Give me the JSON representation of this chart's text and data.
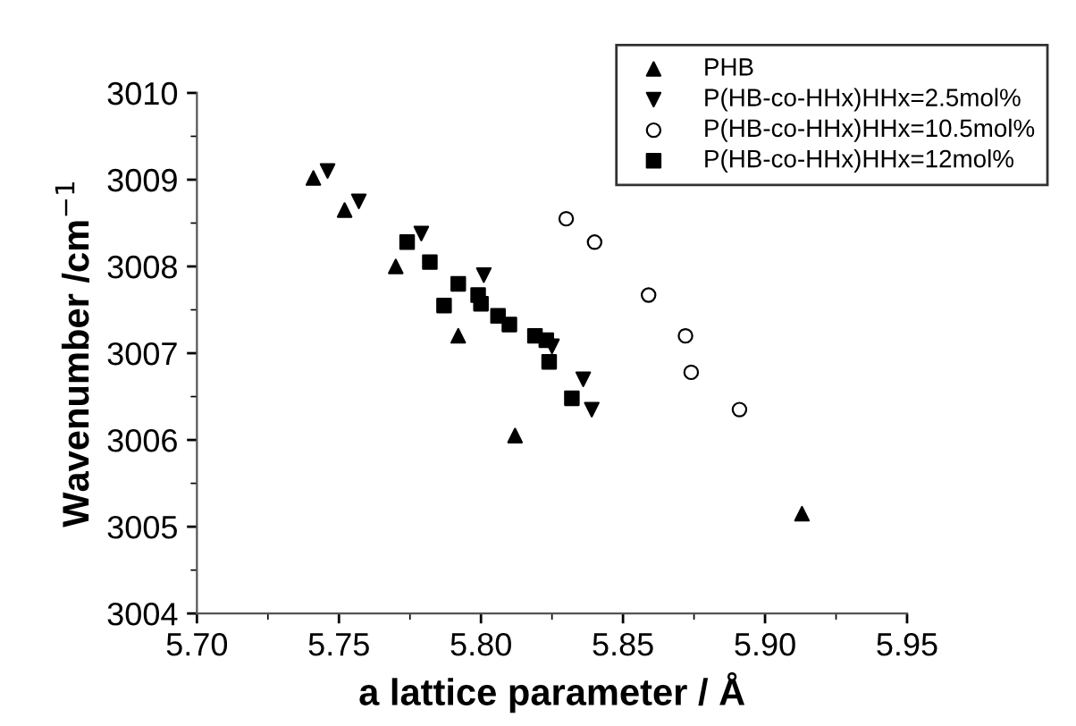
{
  "chart_data": {
    "type": "scatter",
    "xlabel": "a lattice parameter / Å",
    "ylabel": "Wavenumber /cm$^{−1}$",
    "xlim": [
      5.7,
      5.95
    ],
    "xticks": [
      {
        "value": 5.7,
        "label": "5.70"
      },
      {
        "value": 5.75,
        "label": "5.75"
      },
      {
        "value": 5.8,
        "label": "5.80"
      },
      {
        "value": 5.85,
        "label": "5.85"
      },
      {
        "value": 5.9,
        "label": "5.90"
      },
      {
        "value": 5.95,
        "label": "5.95"
      }
    ],
    "ylim": [
      3004,
      3010
    ],
    "yticks": [
      3004,
      3005,
      3006,
      3007,
      3008,
      3009,
      3010
    ],
    "grid": false,
    "legend": "top right",
    "series": [
      {
        "name": "PHB",
        "color": "#000000",
        "marker": "triangle",
        "x": [
          5.741,
          5.752,
          5.77,
          5.792,
          5.812,
          5.913
        ],
        "values": [
          3009.02,
          3008.65,
          3008.0,
          3007.2,
          3006.05,
          3005.15
        ]
      },
      {
        "name": "P(HB-co-HHx)HHx=2.5mol%",
        "color": "#000000",
        "marker": "triangle_down",
        "x": [
          5.746,
          5.757,
          5.779,
          5.801,
          5.825,
          5.836,
          5.839
        ],
        "values": [
          3009.1,
          3008.75,
          3008.38,
          3007.9,
          3007.08,
          3006.7,
          3006.35
        ]
      },
      {
        "name": "P(HB-co-HHx)HHx=10.5mol%",
        "color": "#000000",
        "marker": "circle",
        "x": [
          5.83,
          5.84,
          5.859,
          5.872,
          5.874,
          5.891
        ],
        "values": [
          3008.55,
          3008.28,
          3007.67,
          3007.2,
          3006.78,
          3006.35
        ]
      },
      {
        "name": "P(HB-co-HHx)HHx=12mol%",
        "color": "#000000",
        "marker": "square",
        "x": [
          5.774,
          5.782,
          5.787,
          5.792,
          5.799,
          5.8,
          5.806,
          5.81,
          5.819,
          5.823,
          5.824,
          5.832
        ],
        "values": [
          3008.28,
          3008.05,
          3007.55,
          3007.8,
          3007.67,
          3007.57,
          3007.43,
          3007.33,
          3007.2,
          3007.15,
          3006.9,
          3006.48
        ]
      }
    ]
  }
}
